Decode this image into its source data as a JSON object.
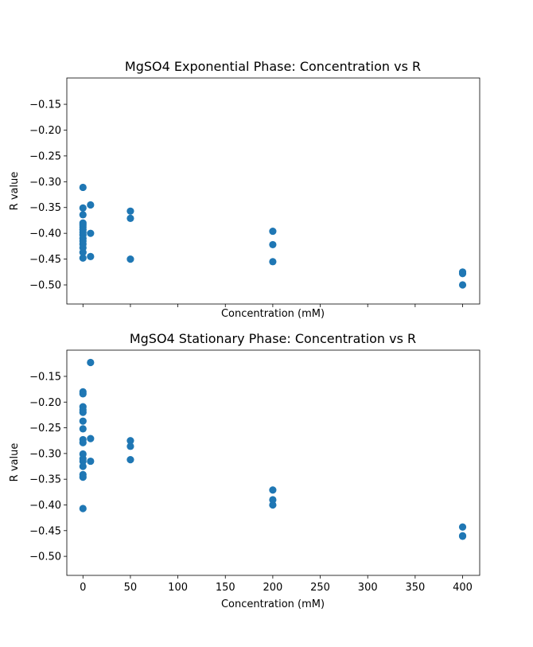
{
  "chart_data": [
    {
      "type": "scatter",
      "title": "MgSO4 Exponential Phase: Concentration vs R",
      "xlabel": "Concentration (mM)",
      "ylabel": "R value",
      "xlim": [
        -17,
        418
      ],
      "ylim": [
        -0.537,
        -0.099
      ],
      "xticks": [
        0,
        50,
        100,
        150,
        200,
        250,
        300,
        350,
        400
      ],
      "xtick_labels_shown": false,
      "yticks": [
        -0.5,
        -0.45,
        -0.4,
        -0.35,
        -0.3,
        -0.25,
        -0.2,
        -0.15
      ],
      "ytick_labels": [
        "−0.50",
        "−0.45",
        "−0.40",
        "−0.35",
        "−0.30",
        "−0.25",
        "−0.20",
        "−0.15"
      ],
      "color": "#1f77b4",
      "grid": false,
      "points": [
        {
          "x": 0,
          "y": -0.311
        },
        {
          "x": 0,
          "y": -0.351
        },
        {
          "x": 0,
          "y": -0.364
        },
        {
          "x": 0,
          "y": -0.38
        },
        {
          "x": 0,
          "y": -0.384
        },
        {
          "x": 0,
          "y": -0.388
        },
        {
          "x": 0,
          "y": -0.393
        },
        {
          "x": 0,
          "y": -0.398
        },
        {
          "x": 0,
          "y": -0.403
        },
        {
          "x": 0,
          "y": -0.41
        },
        {
          "x": 0,
          "y": -0.415
        },
        {
          "x": 0,
          "y": -0.421
        },
        {
          "x": 0,
          "y": -0.428
        },
        {
          "x": 0,
          "y": -0.437
        },
        {
          "x": 0,
          "y": -0.448
        },
        {
          "x": 8,
          "y": -0.345
        },
        {
          "x": 8,
          "y": -0.4
        },
        {
          "x": 8,
          "y": -0.445
        },
        {
          "x": 50,
          "y": -0.357
        },
        {
          "x": 50,
          "y": -0.371
        },
        {
          "x": 50,
          "y": -0.45
        },
        {
          "x": 200,
          "y": -0.396
        },
        {
          "x": 200,
          "y": -0.422
        },
        {
          "x": 200,
          "y": -0.455
        },
        {
          "x": 400,
          "y": -0.475
        },
        {
          "x": 400,
          "y": -0.478
        },
        {
          "x": 400,
          "y": -0.5
        }
      ]
    },
    {
      "type": "scatter",
      "title": "MgSO4 Stationary Phase: Concentration vs R",
      "xlabel": "Concentration (mM)",
      "ylabel": "R value",
      "xlim": [
        -17,
        418
      ],
      "ylim": [
        -0.537,
        -0.099
      ],
      "xticks": [
        0,
        50,
        100,
        150,
        200,
        250,
        300,
        350,
        400
      ],
      "xtick_labels": [
        "0",
        "50",
        "100",
        "150",
        "200",
        "250",
        "300",
        "350",
        "400"
      ],
      "xtick_labels_shown": true,
      "yticks": [
        -0.5,
        -0.45,
        -0.4,
        -0.35,
        -0.3,
        -0.25,
        -0.2,
        -0.15
      ],
      "ytick_labels": [
        "−0.50",
        "−0.45",
        "−0.40",
        "−0.35",
        "−0.30",
        "−0.25",
        "−0.20",
        "−0.15"
      ],
      "color": "#1f77b4",
      "grid": false,
      "points": [
        {
          "x": 0,
          "y": -0.18
        },
        {
          "x": 0,
          "y": -0.184
        },
        {
          "x": 0,
          "y": -0.209
        },
        {
          "x": 0,
          "y": -0.215
        },
        {
          "x": 0,
          "y": -0.22
        },
        {
          "x": 0,
          "y": -0.237
        },
        {
          "x": 0,
          "y": -0.252
        },
        {
          "x": 0,
          "y": -0.273
        },
        {
          "x": 0,
          "y": -0.279
        },
        {
          "x": 0,
          "y": -0.301
        },
        {
          "x": 0,
          "y": -0.31
        },
        {
          "x": 0,
          "y": -0.315
        },
        {
          "x": 0,
          "y": -0.325
        },
        {
          "x": 0,
          "y": -0.341
        },
        {
          "x": 0,
          "y": -0.346
        },
        {
          "x": 0,
          "y": -0.407
        },
        {
          "x": 8,
          "y": -0.123
        },
        {
          "x": 8,
          "y": -0.271
        },
        {
          "x": 8,
          "y": -0.315
        },
        {
          "x": 50,
          "y": -0.275
        },
        {
          "x": 50,
          "y": -0.286
        },
        {
          "x": 50,
          "y": -0.312
        },
        {
          "x": 200,
          "y": -0.371
        },
        {
          "x": 200,
          "y": -0.39
        },
        {
          "x": 200,
          "y": -0.4
        },
        {
          "x": 400,
          "y": -0.443
        },
        {
          "x": 400,
          "y": -0.46
        },
        {
          "x": 400,
          "y": -0.461
        }
      ]
    }
  ]
}
